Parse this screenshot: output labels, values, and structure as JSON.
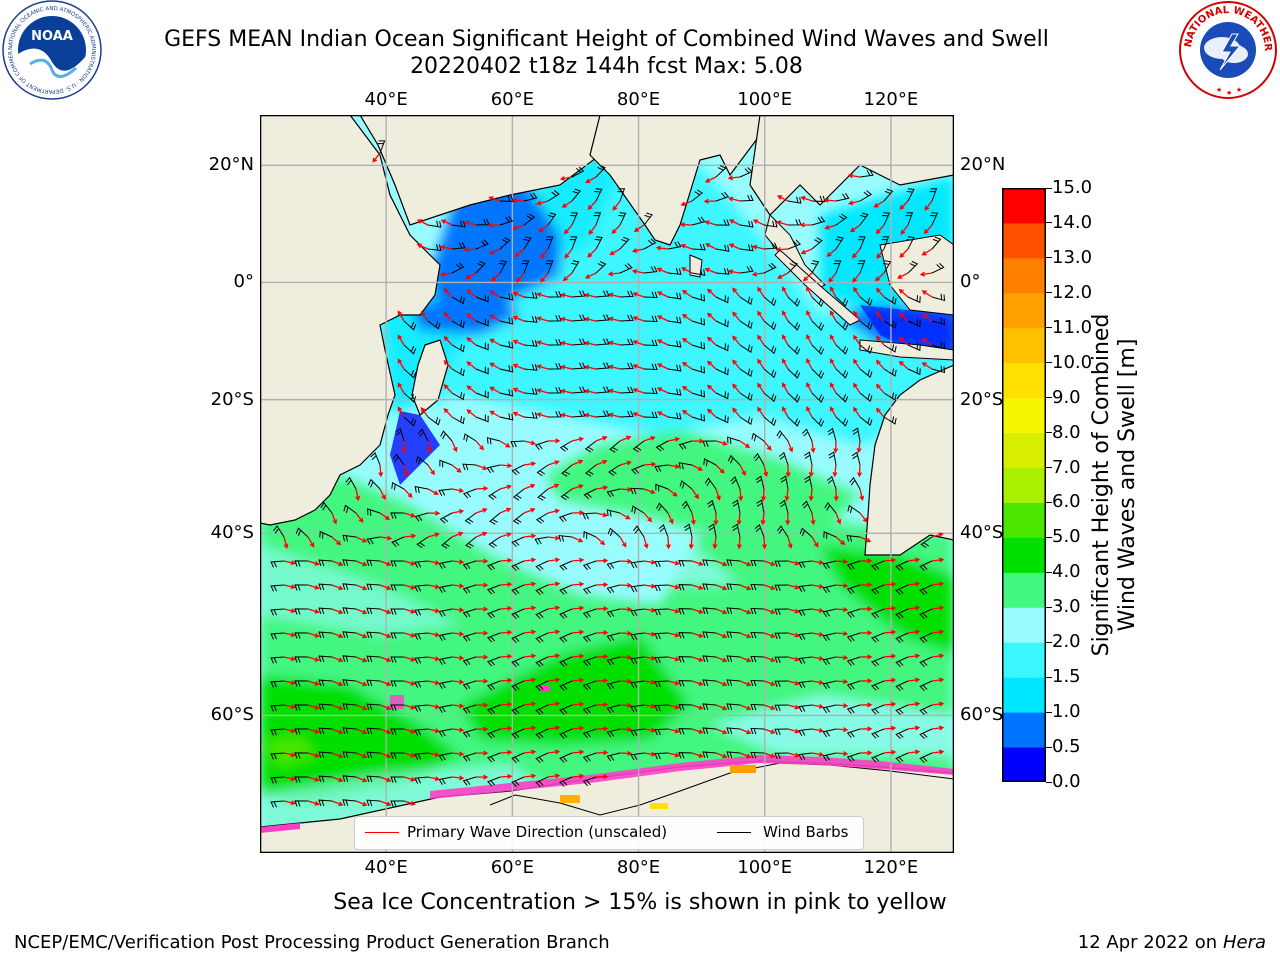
{
  "header": {
    "title_line1": "GEFS MEAN Indian Ocean Significant Height of Combined Wind Waves and Swell",
    "title_line2": "20220402 t18z 144h fcst   Max: 5.08"
  },
  "logos": {
    "left_icon": "noaa-logo-icon",
    "left_text": "NOAA",
    "left_ring_text": "NATIONAL OCEANIC AND ATMOSPHERIC ADMINISTRATION · U.S. DEPARTMENT OF COMMERCE",
    "right_icon": "nws-logo-icon",
    "right_ring_text": "NATIONAL WEATHER SERVICE"
  },
  "map": {
    "lon_ticks": [
      "40°E",
      "60°E",
      "80°E",
      "100°E",
      "120°E"
    ],
    "lat_ticks": [
      "20°N",
      "0°",
      "20°S",
      "40°S",
      "60°S"
    ],
    "lon_range": [
      20,
      130
    ],
    "lat_range": [
      -70,
      28
    ],
    "colors": {
      "land": "#efedde",
      "grid": "#b0b0b0",
      "wave_arrow": "#ff0000",
      "wind_barb": "#000000"
    }
  },
  "legend": {
    "wave_label": "Primary Wave Direction (unscaled)",
    "wind_label": "Wind Barbs"
  },
  "colorbar": {
    "label_line1": "Significant Height of Combined",
    "label_line2": "Wind Waves and Swell [m]",
    "ticks": [
      "0.0",
      "0.5",
      "1.0",
      "1.5",
      "2.0",
      "3.0",
      "4.0",
      "5.0",
      "6.0",
      "7.0",
      "8.0",
      "9.0",
      "10.0",
      "11.0",
      "12.0",
      "13.0",
      "14.0",
      "15.0"
    ],
    "colors": [
      "#0000ff",
      "#0074ff",
      "#00e8ff",
      "#3cf6ff",
      "#98fcff",
      "#43f680",
      "#00e000",
      "#4ae600",
      "#aaee00",
      "#d8ee00",
      "#f6f600",
      "#ffe000",
      "#ffc000",
      "#ffa000",
      "#ff8000",
      "#ff5000",
      "#ff0000"
    ]
  },
  "footer": {
    "ice_note": "Sea Ice Concentration > 15% is shown in pink to yellow",
    "left": "NCEP/EMC/Verification Post Processing Product Generation Branch",
    "right_date": "12 Apr 2022 on ",
    "right_host": "Hera"
  }
}
